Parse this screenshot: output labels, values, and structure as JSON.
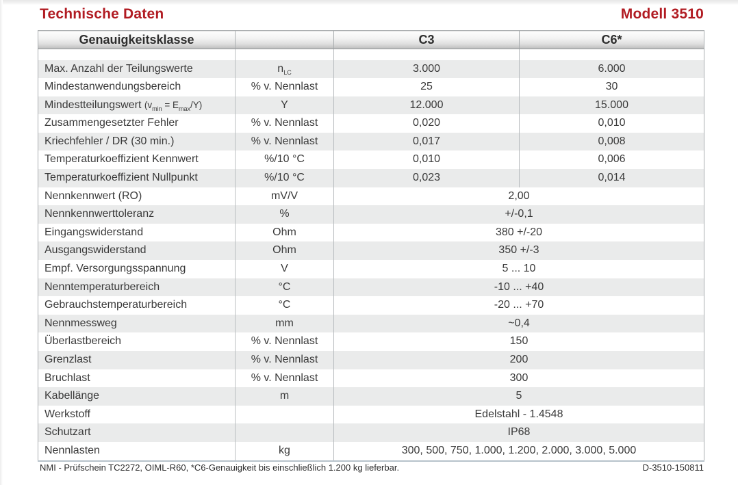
{
  "page": {
    "title": "Technische Daten",
    "model": "Modell 3510"
  },
  "colors": {
    "accent": "#B11B22",
    "row_stripe": "#EAEBEB"
  },
  "table": {
    "columns": [
      "Genauigkeitsklasse",
      "",
      "C3",
      "C6*"
    ],
    "rows": [
      {
        "param": "Max. Anzahl der Teilungswerte",
        "unit": [
          {
            "t": "n"
          },
          {
            "t": "LC",
            "sub": true
          }
        ],
        "c3": "3.000",
        "c6": "6.000"
      },
      {
        "param": "Mindestanwendungsbereich",
        "unit": "% v. Nennlast",
        "c3": "25",
        "c6": "30"
      },
      {
        "param": [
          {
            "t": "Mindestteilungswert "
          },
          {
            "t": "(v",
            "small": true
          },
          {
            "t": "min",
            "sub": true
          },
          {
            "t": " = E",
            "small": true
          },
          {
            "t": "max",
            "sub": true
          },
          {
            "t": "/Y)",
            "small": true
          }
        ],
        "unit": "Y",
        "c3": "12.000",
        "c6": "15.000"
      },
      {
        "param": "Zusammengesetzter Fehler",
        "unit": "% v. Nennlast",
        "c3": "0,020",
        "c6": "0,010"
      },
      {
        "param": "Kriechfehler / DR (30 min.)",
        "unit": "% v. Nennlast",
        "c3": "0,017",
        "c6": "0,008"
      },
      {
        "param": "Temperaturkoeffizient Kennwert",
        "unit": "%/10 °C",
        "c3": "0,010",
        "c6": "0,006"
      },
      {
        "param": "Temperaturkoeffizient Nullpunkt",
        "unit": "%/10 °C",
        "c3": "0,023",
        "c6": "0,014"
      },
      {
        "param": "Nennkennwert (RO)",
        "unit": "mV/V",
        "span": "2,00"
      },
      {
        "param": "Nennkennwerttoleranz",
        "unit": "%",
        "span": "+/-0,1"
      },
      {
        "param": "Eingangswiderstand",
        "unit": "Ohm",
        "span": "380 +/-20"
      },
      {
        "param": "Ausgangswiderstand",
        "unit": "Ohm",
        "span": "350 +/-3"
      },
      {
        "param": "Empf. Versorgungsspannung",
        "unit": "V",
        "span": "5 ... 10"
      },
      {
        "param": "Nenntemperaturbereich",
        "unit": "°C",
        "span": "-10 ... +40"
      },
      {
        "param": "Gebrauchstemperaturbereich",
        "unit": "°C",
        "span": "-20 ... +70"
      },
      {
        "param": "Nennmessweg",
        "unit": "mm",
        "span": "~0,4"
      },
      {
        "param": "Überlastbereich",
        "unit": "% v. Nennlast",
        "span": "150"
      },
      {
        "param": "Grenzlast",
        "unit": "% v. Nennlast",
        "span": "200"
      },
      {
        "param": "Bruchlast",
        "unit": "% v. Nennlast",
        "span": "300"
      },
      {
        "param": "Kabellänge",
        "unit": "m",
        "span": "5"
      },
      {
        "param": "Werkstoff",
        "unit": "",
        "span": "Edelstahl - 1.4548"
      },
      {
        "param": "Schutzart",
        "unit": "",
        "span": "IP68"
      },
      {
        "param": "Nennlasten",
        "unit": "kg",
        "span": "300, 500, 750, 1.000, 1.200, 2.000, 3.000, 5.000"
      }
    ]
  },
  "footer": {
    "note": "NMI - Prüfschein TC2272, OIML-R60, *C6-Genauigkeit bis einschließlich 1.200 kg lieferbar.",
    "doc_id": "D-3510-150811"
  }
}
